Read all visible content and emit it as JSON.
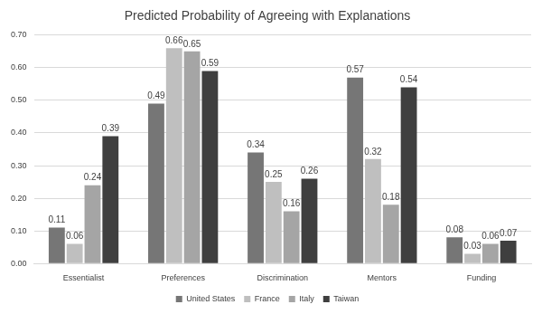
{
  "chart_data": {
    "type": "bar",
    "title": "Predicted Probability of Agreeing with Explanations",
    "categories": [
      "Essentialist",
      "Preferences",
      "Discrimination",
      "Mentors",
      "Funding"
    ],
    "series": [
      {
        "name": "United States",
        "color": "#767676",
        "values": [
          0.11,
          0.49,
          0.34,
          0.57,
          0.08
        ]
      },
      {
        "name": "France",
        "color": "#bfbfbf",
        "values": [
          0.06,
          0.66,
          0.25,
          0.32,
          0.03
        ]
      },
      {
        "name": "Italy",
        "color": "#a5a5a5",
        "values": [
          0.24,
          0.65,
          0.16,
          0.18,
          0.06
        ]
      },
      {
        "name": "Taiwan",
        "color": "#3f3f3f",
        "values": [
          0.39,
          0.59,
          0.26,
          0.54,
          0.07
        ]
      }
    ],
    "ylim": [
      0,
      0.7
    ],
    "yticks": [
      {
        "value": 0,
        "label": "0.00"
      },
      {
        "value": 0.1,
        "label": "0.10"
      },
      {
        "value": 0.2,
        "label": "0.20"
      },
      {
        "value": 0.3,
        "label": "0.30"
      },
      {
        "value": 0.4,
        "label": "0.40"
      },
      {
        "value": 0.5,
        "label": "0.50"
      },
      {
        "value": 0.6,
        "label": "0.60"
      },
      {
        "value": 0.7,
        "label": "0.70"
      }
    ],
    "grid": true,
    "legend": "bottom",
    "data_labels": true
  }
}
